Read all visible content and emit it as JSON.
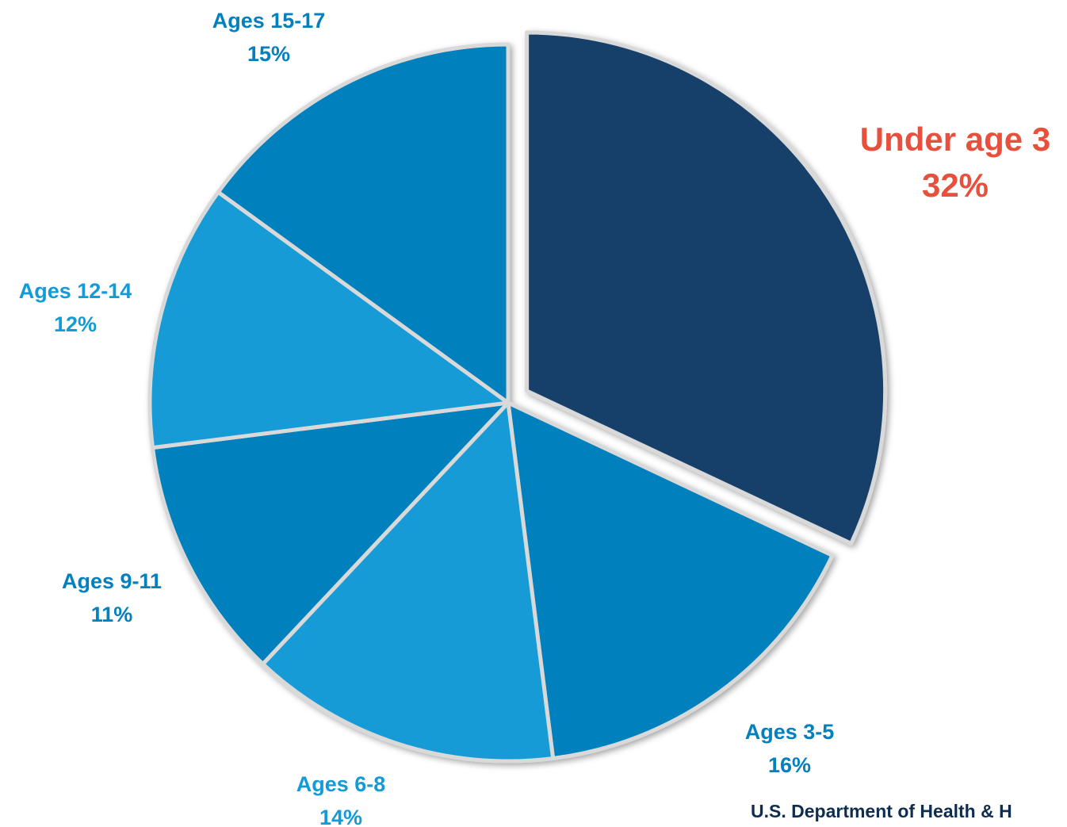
{
  "chart_data": {
    "type": "pie",
    "slices": [
      {
        "label": "Under age 3",
        "value": 32,
        "value_text": "32%",
        "color": "#123f69",
        "label_color": "#e8503e",
        "exploded": true
      },
      {
        "label": "Ages 3-5",
        "value": 16,
        "value_text": "16%",
        "color": "#0380bd",
        "label_color": "#0380bd",
        "exploded": false
      },
      {
        "label": "Ages 6-8",
        "value": 14,
        "value_text": "14%",
        "color": "#139bd7",
        "label_color": "#139bd7",
        "exploded": false
      },
      {
        "label": "Ages 9-11",
        "value": 11,
        "value_text": "11%",
        "color": "#0380bd",
        "label_color": "#0380bd",
        "exploded": false
      },
      {
        "label": "Ages 12-14",
        "value": 12,
        "value_text": "12%",
        "color": "#139bd7",
        "label_color": "#139bd7",
        "exploded": false
      },
      {
        "label": "Ages 15-17",
        "value": 15,
        "value_text": "15%",
        "color": "#0380bd",
        "label_color": "#0380bd",
        "exploded": false
      }
    ],
    "start_angle": "12 o'clock",
    "direction": "clockwise"
  },
  "source": "U.S. Department of Health & H"
}
